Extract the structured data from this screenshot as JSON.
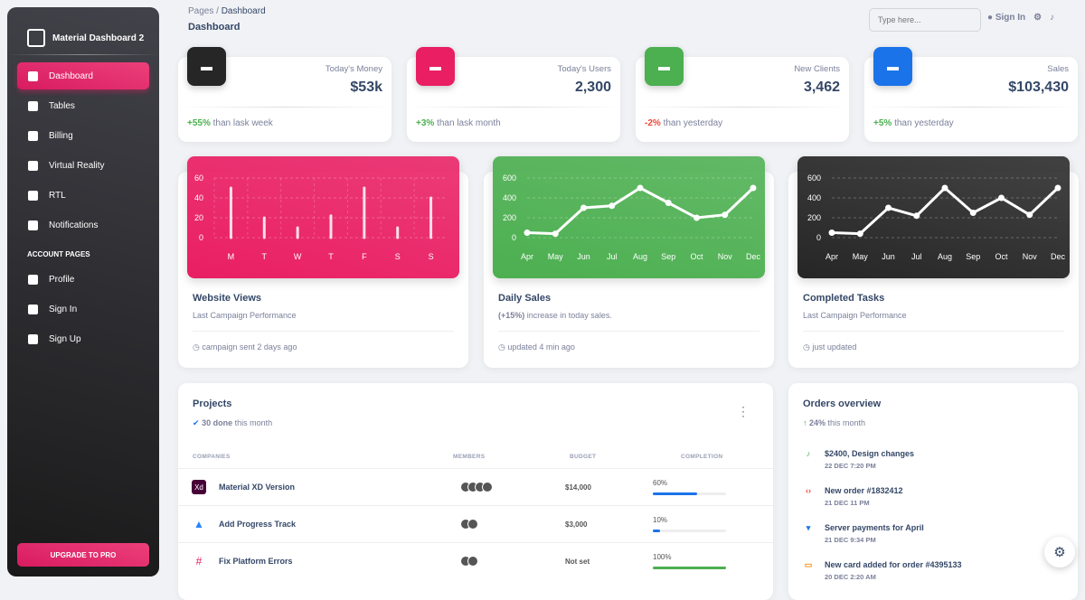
{
  "sidebar": {
    "brand": "Material Dashboard 2",
    "items": [
      {
        "label": "Dashboard",
        "icon": "dashboard-icon"
      },
      {
        "label": "Tables",
        "icon": "table-icon"
      },
      {
        "label": "Billing",
        "icon": "receipt-icon"
      },
      {
        "label": "Virtual Reality",
        "icon": "vr-icon"
      },
      {
        "label": "RTL",
        "icon": "rtl-icon"
      },
      {
        "label": "Notifications",
        "icon": "bell-icon"
      }
    ],
    "section": "ACCOUNT PAGES",
    "account": [
      {
        "label": "Profile",
        "icon": "person-icon"
      },
      {
        "label": "Sign In",
        "icon": "login-icon"
      },
      {
        "label": "Sign Up",
        "icon": "assignment-icon"
      }
    ],
    "upgrade": "UPGRADE TO PRO"
  },
  "header": {
    "crumb_root": "Pages",
    "crumb_sep": "/",
    "crumb_current": "Dashboard",
    "title": "Dashboard",
    "search_placeholder": "Type here...",
    "sign_in": "Sign In"
  },
  "stats": [
    {
      "label": "Today's Money",
      "value": "$53k",
      "change": "+55%",
      "text": " than lask week",
      "tone": "up",
      "color": "#262626"
    },
    {
      "label": "Today's Users",
      "value": "2,300",
      "change": "+3%",
      "text": " than lask month",
      "tone": "up",
      "color": "#e91e63"
    },
    {
      "label": "New Clients",
      "value": "3,462",
      "change": "-2%",
      "text": " than yesterday",
      "tone": "down",
      "color": "#4caf50"
    },
    {
      "label": "Sales",
      "value": "$103,430",
      "change": "+5%",
      "text": " than yesterday",
      "tone": "up",
      "color": "#1a73e8"
    }
  ],
  "charts": [
    {
      "title": "Website Views",
      "subtitle": "Last Campaign Performance",
      "footer": "campaign sent 2 days ago"
    },
    {
      "title": "Daily Sales",
      "subtitle_bold": "(+15%)",
      "subtitle": " increase in today sales.",
      "footer": "updated 4 min ago"
    },
    {
      "title": "Completed Tasks",
      "subtitle": "Last Campaign Performance",
      "footer": "just updated"
    }
  ],
  "chart_data": [
    {
      "type": "bar",
      "categories": [
        "M",
        "T",
        "W",
        "T",
        "F",
        "S",
        "S"
      ],
      "values": [
        50,
        20,
        10,
        22,
        50,
        10,
        40
      ],
      "ylim": [
        0,
        60
      ],
      "yticks": [
        0,
        20,
        40,
        60
      ],
      "grid": true,
      "background": "#e91e63"
    },
    {
      "type": "line",
      "categories": [
        "Apr",
        "May",
        "Jun",
        "Jul",
        "Aug",
        "Sep",
        "Oct",
        "Nov",
        "Dec"
      ],
      "values": [
        50,
        40,
        300,
        320,
        500,
        350,
        200,
        230,
        500
      ],
      "ylim": [
        0,
        600
      ],
      "yticks": [
        0,
        200,
        400,
        600
      ],
      "grid": true,
      "background": "#4caf50"
    },
    {
      "type": "line",
      "categories": [
        "Apr",
        "May",
        "Jun",
        "Jul",
        "Aug",
        "Sep",
        "Oct",
        "Nov",
        "Dec"
      ],
      "values": [
        50,
        40,
        300,
        220,
        500,
        250,
        400,
        230,
        500
      ],
      "ylim": [
        0,
        600
      ],
      "yticks": [
        0,
        200,
        400,
        600
      ],
      "grid": true,
      "background": "#262626"
    }
  ],
  "projects": {
    "title": "Projects",
    "done": "30 done",
    "done_text": " this month",
    "columns": [
      "COMPANIES",
      "MEMBERS",
      "BUDGET",
      "COMPLETION"
    ],
    "rows": [
      {
        "name": "Material XD Version",
        "icon": "xd-icon",
        "members": 4,
        "budget": "$14,000",
        "completion": 60,
        "completion_label": "60%"
      },
      {
        "name": "Add Progress Track",
        "icon": "atlassian-icon",
        "members": 2,
        "budget": "$3,000",
        "completion": 10,
        "completion_label": "10%"
      },
      {
        "name": "Fix Platform Errors",
        "icon": "slack-icon",
        "members": 2,
        "budget": "Not set",
        "completion": 100,
        "completion_label": "100%"
      }
    ]
  },
  "orders": {
    "title": "Orders overview",
    "pct": "24%",
    "pct_text": " this month",
    "items": [
      {
        "title": "$2400, Design changes",
        "date": "22 DEC 7:20 PM",
        "icon": "bell-icon",
        "color": "#4caf50"
      },
      {
        "title": "New order #1832412",
        "date": "21 DEC 11 PM",
        "icon": "code-icon",
        "color": "#f44335"
      },
      {
        "title": "Server payments for April",
        "date": "21 DEC 9:34 PM",
        "icon": "cart-icon",
        "color": "#1a73e8"
      },
      {
        "title": "New card added for order #4395133",
        "date": "20 DEC 2:20 AM",
        "icon": "credit-card-icon",
        "color": "#fb8c00"
      }
    ]
  }
}
